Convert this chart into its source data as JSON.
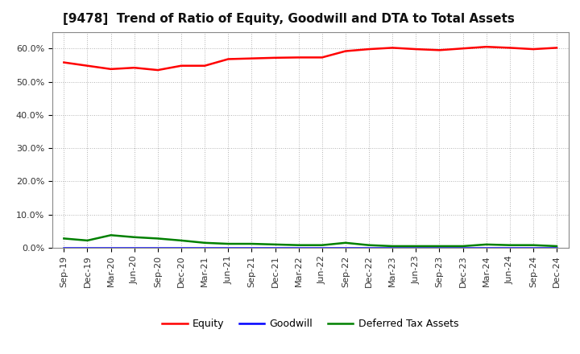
{
  "title": "[9478]  Trend of Ratio of Equity, Goodwill and DTA to Total Assets",
  "x_labels": [
    "Sep-19",
    "Dec-19",
    "Mar-20",
    "Jun-20",
    "Sep-20",
    "Dec-20",
    "Mar-21",
    "Jun-21",
    "Sep-21",
    "Dec-21",
    "Mar-22",
    "Jun-22",
    "Sep-22",
    "Dec-22",
    "Mar-23",
    "Jun-23",
    "Sep-23",
    "Dec-23",
    "Mar-24",
    "Jun-24",
    "Sep-24",
    "Dec-24"
  ],
  "equity": [
    55.8,
    54.8,
    53.8,
    54.2,
    53.5,
    54.8,
    54.8,
    56.8,
    57.0,
    57.2,
    57.3,
    57.3,
    59.2,
    59.8,
    60.2,
    59.8,
    59.5,
    60.0,
    60.5,
    60.2,
    59.8,
    60.2
  ],
  "goodwill": [
    0.0,
    0.0,
    0.0,
    0.0,
    0.0,
    0.0,
    0.0,
    0.0,
    0.0,
    0.0,
    0.0,
    0.0,
    0.0,
    0.0,
    0.0,
    0.0,
    0.0,
    0.0,
    0.0,
    0.0,
    0.0,
    0.0
  ],
  "dta": [
    2.8,
    2.2,
    3.8,
    3.2,
    2.8,
    2.2,
    1.5,
    1.2,
    1.2,
    1.0,
    0.8,
    0.8,
    1.5,
    0.8,
    0.5,
    0.5,
    0.5,
    0.5,
    1.0,
    0.8,
    0.8,
    0.5
  ],
  "equity_color": "#FF0000",
  "goodwill_color": "#0000FF",
  "dta_color": "#008000",
  "bg_color": "#FFFFFF",
  "plot_bg_color": "#FFFFFF",
  "grid_color": "#AAAAAA",
  "ylim": [
    0,
    65
  ],
  "yticks": [
    0,
    10,
    20,
    30,
    40,
    50,
    60
  ],
  "ytick_labels": [
    "0.0%",
    "10.0%",
    "20.0%",
    "30.0%",
    "40.0%",
    "50.0%",
    "60.0%"
  ],
  "title_fontsize": 11,
  "tick_fontsize": 8,
  "legend_fontsize": 9
}
